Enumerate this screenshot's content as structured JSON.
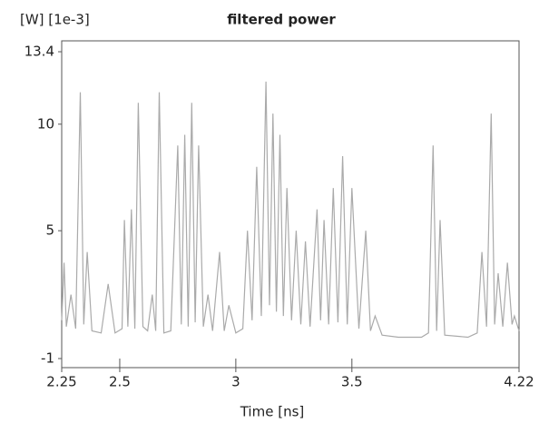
{
  "chart_data": {
    "type": "line",
    "title": "filtered power",
    "y_label": "[W] [1e-3]",
    "x_label": "Time [ns]",
    "x": [
      2.25,
      2.26,
      2.27,
      2.29,
      2.31,
      2.33,
      2.345,
      2.36,
      2.38,
      2.42,
      2.45,
      2.48,
      2.51,
      2.52,
      2.535,
      2.55,
      2.565,
      2.58,
      2.6,
      2.62,
      2.64,
      2.655,
      2.67,
      2.69,
      2.72,
      2.75,
      2.765,
      2.78,
      2.795,
      2.81,
      2.825,
      2.84,
      2.86,
      2.88,
      2.9,
      2.93,
      2.95,
      2.97,
      3.0,
      3.03,
      3.05,
      3.07,
      3.09,
      3.11,
      3.13,
      3.145,
      3.16,
      3.175,
      3.19,
      3.205,
      3.22,
      3.24,
      3.26,
      3.28,
      3.3,
      3.32,
      3.35,
      3.365,
      3.38,
      3.4,
      3.42,
      3.44,
      3.46,
      3.48,
      3.5,
      3.53,
      3.56,
      3.58,
      3.6,
      3.63,
      3.7,
      3.8,
      3.83,
      3.85,
      3.865,
      3.88,
      3.9,
      4.0,
      4.04,
      4.06,
      4.08,
      4.1,
      4.115,
      4.13,
      4.15,
      4.17,
      4.19,
      4.2,
      4.22
    ],
    "values": [
      0.8,
      3.5,
      0.5,
      2,
      0.4,
      11.5,
      0.6,
      4,
      0.3,
      0.2,
      2.5,
      0.2,
      0.4,
      5.5,
      0.5,
      6,
      0.4,
      11,
      0.5,
      0.3,
      2,
      0.3,
      11.5,
      0.2,
      0.3,
      9,
      0.6,
      9.5,
      0.5,
      11,
      0.7,
      9,
      0.5,
      2,
      0.3,
      4,
      0.3,
      1.5,
      0.2,
      0.4,
      5,
      0.8,
      8,
      1,
      12,
      1.5,
      10.5,
      1.2,
      9.5,
      1,
      7,
      0.8,
      5,
      0.6,
      4.5,
      0.5,
      6,
      0.8,
      5.5,
      0.6,
      7,
      0.7,
      8.5,
      0.6,
      7,
      0.4,
      5,
      0.3,
      1,
      0.1,
      0,
      0,
      0.2,
      9,
      0.3,
      5.5,
      0.1,
      0,
      0.2,
      4,
      0.5,
      10.5,
      0.6,
      3,
      0.5,
      3.5,
      0.6,
      1,
      0.3
    ],
    "color": "#aaaaaa",
    "xlim": [
      2.25,
      4.22
    ],
    "xticks": [
      2.25,
      2.5,
      3,
      3.5,
      4.22
    ],
    "ylim": [
      -1,
      13.4
    ],
    "yticks": [
      13.4,
      10,
      5,
      -1
    ]
  }
}
